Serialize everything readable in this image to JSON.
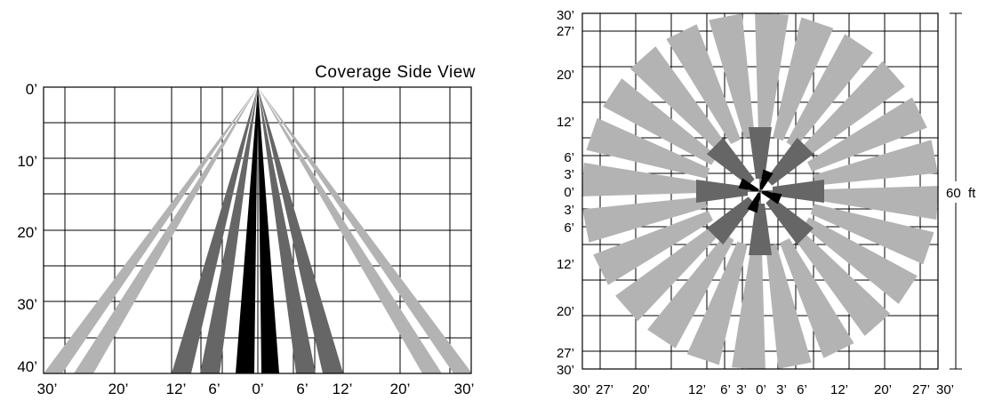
{
  "side_view": {
    "title": "Coverage Side View",
    "y_labels": [
      "0’",
      "10’",
      "20’",
      "30’",
      "40’"
    ],
    "x_labels": [
      "30’",
      "20’",
      "12’",
      "6’",
      "0’",
      "6’",
      "12’",
      "20’",
      "30’"
    ],
    "colors": {
      "outer": "#b3b3b3",
      "middle": "#666666",
      "inner": "#000000"
    }
  },
  "top_view": {
    "left_labels": [
      "30’",
      "27’",
      "20’",
      "12’",
      "6’",
      "3’",
      "0’",
      "3’",
      "6’",
      "12’",
      "20’",
      "27’",
      "30’"
    ],
    "bottom_labels": [
      "30’",
      "27’",
      "20’",
      "12’",
      "6’",
      "3’",
      "0’",
      "3’",
      "6’",
      "12’",
      "20’",
      "27’",
      "30’"
    ],
    "dimension_label": "60  ft",
    "colors": {
      "outer": "#b3b3b3",
      "middle": "#666666",
      "inner": "#000000"
    }
  }
}
